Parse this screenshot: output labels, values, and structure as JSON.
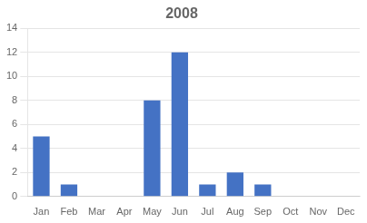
{
  "chart_data": {
    "type": "bar",
    "title": "2008",
    "categories": [
      "Jan",
      "Feb",
      "Mar",
      "Apr",
      "May",
      "Jun",
      "Jul",
      "Aug",
      "Sep",
      "Oct",
      "Nov",
      "Dec"
    ],
    "values": [
      5,
      1,
      0,
      0,
      8,
      12,
      1,
      2,
      1,
      0,
      0,
      0
    ],
    "color": "#4472C4",
    "ylim": [
      0,
      14
    ],
    "yticks": [
      0,
      2,
      4,
      6,
      8,
      10,
      12,
      14
    ],
    "grid": true
  }
}
